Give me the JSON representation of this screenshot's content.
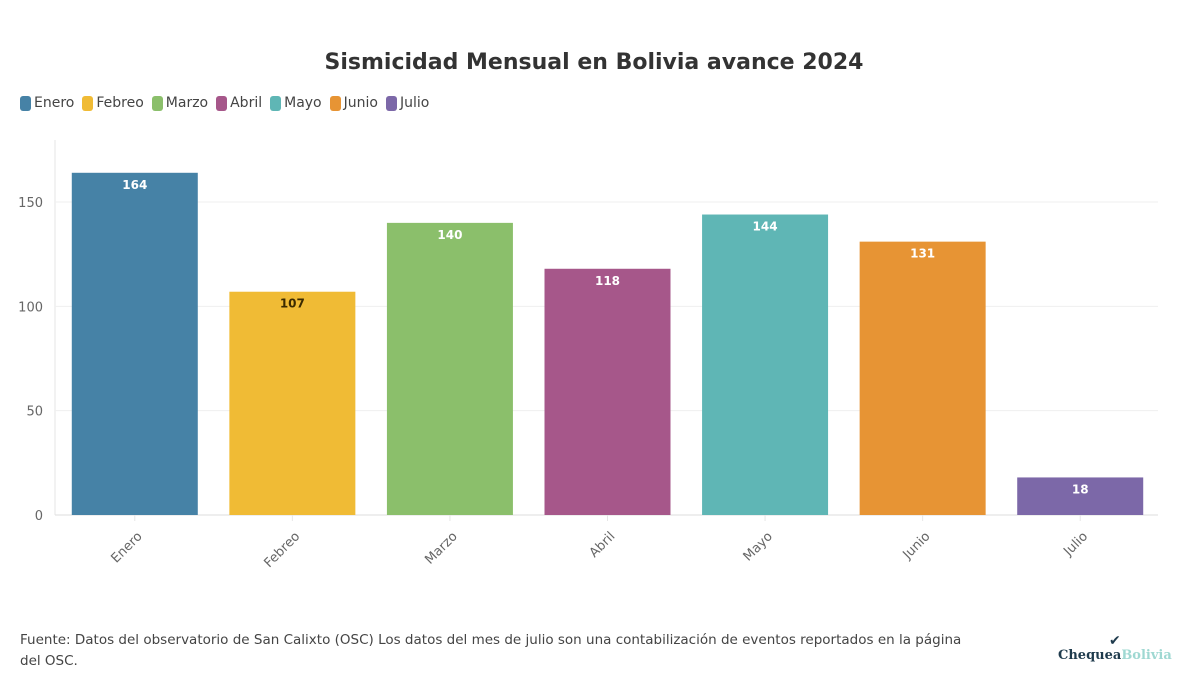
{
  "chart_data": {
    "type": "bar",
    "title": "Sismicidad Mensual en Bolivia avance 2024",
    "categories": [
      "Enero",
      "Febreo",
      "Marzo",
      "Abril",
      "Mayo",
      "Junio",
      "Julio"
    ],
    "values": [
      164,
      107,
      140,
      118,
      144,
      131,
      18
    ],
    "colors": [
      "#4682a6",
      "#f0bb35",
      "#8bbf6b",
      "#a6578a",
      "#5fb6b5",
      "#e79434",
      "#7c68a8"
    ],
    "label_colors": [
      "#ffffff",
      "#3b2a00",
      "#ffffff",
      "#ffffff",
      "#ffffff",
      "#ffffff",
      "#ffffff"
    ],
    "legend": [
      "Enero",
      "Febreo",
      "Marzo",
      "Abril",
      "Mayo",
      "Junio",
      "Julio"
    ],
    "legend_position": "top-left",
    "xlabel": "",
    "ylabel": "",
    "ylim": [
      0,
      180
    ],
    "yticks": [
      0,
      50,
      100,
      150
    ],
    "grid": true
  },
  "footer": {
    "source": "Fuente: Datos del observatorio de San Calixto (OSC) Los datos del mes de julio son una contabilización de eventos reportados en la página del OSC."
  },
  "logo": {
    "part1": "Chequea",
    "part2": "Bolivia",
    "icon": "check-icon"
  }
}
